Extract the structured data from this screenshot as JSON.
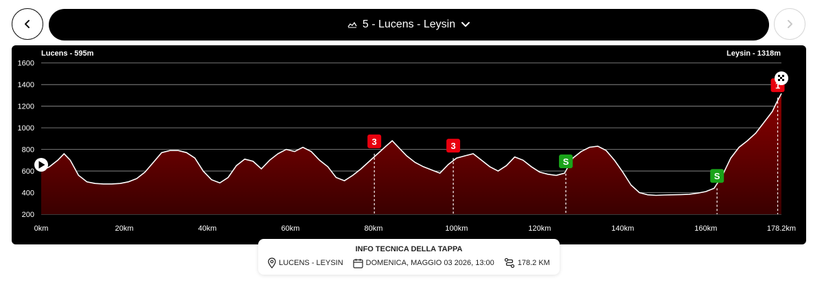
{
  "nav": {
    "prev_icon": "chevron-left-icon",
    "next_icon": "chevron-right-icon"
  },
  "stage": {
    "title": "5 - Lucens - Leysin",
    "icon": "elevation-profile-icon",
    "dropdown_icon": "chevron-down-icon"
  },
  "chart_data": {
    "type": "area",
    "start_label": "Lucens - 595m",
    "end_label": "Leysin - 1318m",
    "xlim": [
      0,
      178.2
    ],
    "ylim": [
      200,
      1700
    ],
    "y_ticks": [
      200,
      400,
      600,
      800,
      1000,
      1200,
      1400,
      1600
    ],
    "x_ticks": [
      {
        "value": 0,
        "label": "0km"
      },
      {
        "value": 20,
        "label": "20km"
      },
      {
        "value": 40,
        "label": "40km"
      },
      {
        "value": 60,
        "label": "60km"
      },
      {
        "value": 80,
        "label": "80km"
      },
      {
        "value": 100,
        "label": "100km"
      },
      {
        "value": 120,
        "label": "120km"
      },
      {
        "value": 140,
        "label": "140km"
      },
      {
        "value": 160,
        "label": "160km"
      },
      {
        "value": 178.2,
        "label": "178.2km"
      }
    ],
    "grid": true,
    "colors": {
      "fill_top": "#8b0000",
      "fill_bottom": "#3a0000",
      "line": "#ffffff",
      "climb": "#e8000e",
      "sprint": "#1aa31a"
    },
    "series": [
      {
        "x": [
          0,
          2,
          4,
          5.5,
          7,
          9,
          11,
          13,
          15,
          17,
          19,
          21,
          23,
          25,
          27,
          29,
          31,
          33,
          35,
          37,
          39,
          41,
          43,
          45,
          47,
          49,
          51,
          53,
          55,
          57,
          59,
          61,
          63,
          65,
          67,
          69,
          71,
          73,
          75,
          77,
          79,
          81,
          83,
          84.5,
          86,
          88,
          90,
          92,
          94,
          96,
          98,
          100,
          102,
          104,
          106,
          108,
          110,
          112,
          114,
          116,
          118,
          120,
          122,
          124,
          126,
          128,
          130,
          132,
          134,
          136,
          138,
          140,
          142,
          144,
          146,
          148,
          150,
          152,
          154,
          156,
          158,
          160,
          162,
          164,
          166,
          168,
          170,
          172,
          174,
          176,
          177,
          178.2
        ],
        "y": [
          600,
          640,
          700,
          760,
          700,
          560,
          500,
          485,
          480,
          480,
          485,
          500,
          530,
          590,
          680,
          770,
          790,
          790,
          770,
          720,
          600,
          520,
          490,
          540,
          650,
          710,
          690,
          620,
          700,
          760,
          800,
          780,
          820,
          780,
          700,
          640,
          540,
          510,
          560,
          620,
          690,
          760,
          830,
          880,
          820,
          740,
          680,
          640,
          610,
          580,
          660,
          720,
          740,
          760,
          700,
          640,
          600,
          650,
          730,
          700,
          640,
          590,
          570,
          560,
          580,
          720,
          780,
          820,
          830,
          790,
          700,
          590,
          470,
          400,
          380,
          375,
          378,
          380,
          382,
          385,
          395,
          410,
          440,
          560,
          720,
          820,
          880,
          950,
          1050,
          1150,
          1230,
          1318
        ]
      }
    ],
    "climbs": [
      {
        "km": 80.2,
        "label": "3",
        "kind": "climb",
        "elev": 760
      },
      {
        "km": 99.2,
        "label": "3",
        "kind": "climb",
        "elev": 720
      },
      {
        "km": 126.3,
        "label": "S",
        "kind": "sprint",
        "elev": 575
      },
      {
        "km": 162.7,
        "label": "S",
        "kind": "sprint",
        "elev": 440
      },
      {
        "km": 177.3,
        "label": "1",
        "kind": "climb",
        "elev": 1280
      }
    ]
  },
  "info": {
    "title": "INFO TECNICA DELLA TAPPA",
    "location": "LUCENS - LEYSIN",
    "date": "DOMENICA, MAGGIO 03 2026, 13:00",
    "distance": "178.2 KM",
    "location_icon": "map-pin-icon",
    "date_icon": "calendar-icon",
    "distance_icon": "route-icon"
  }
}
